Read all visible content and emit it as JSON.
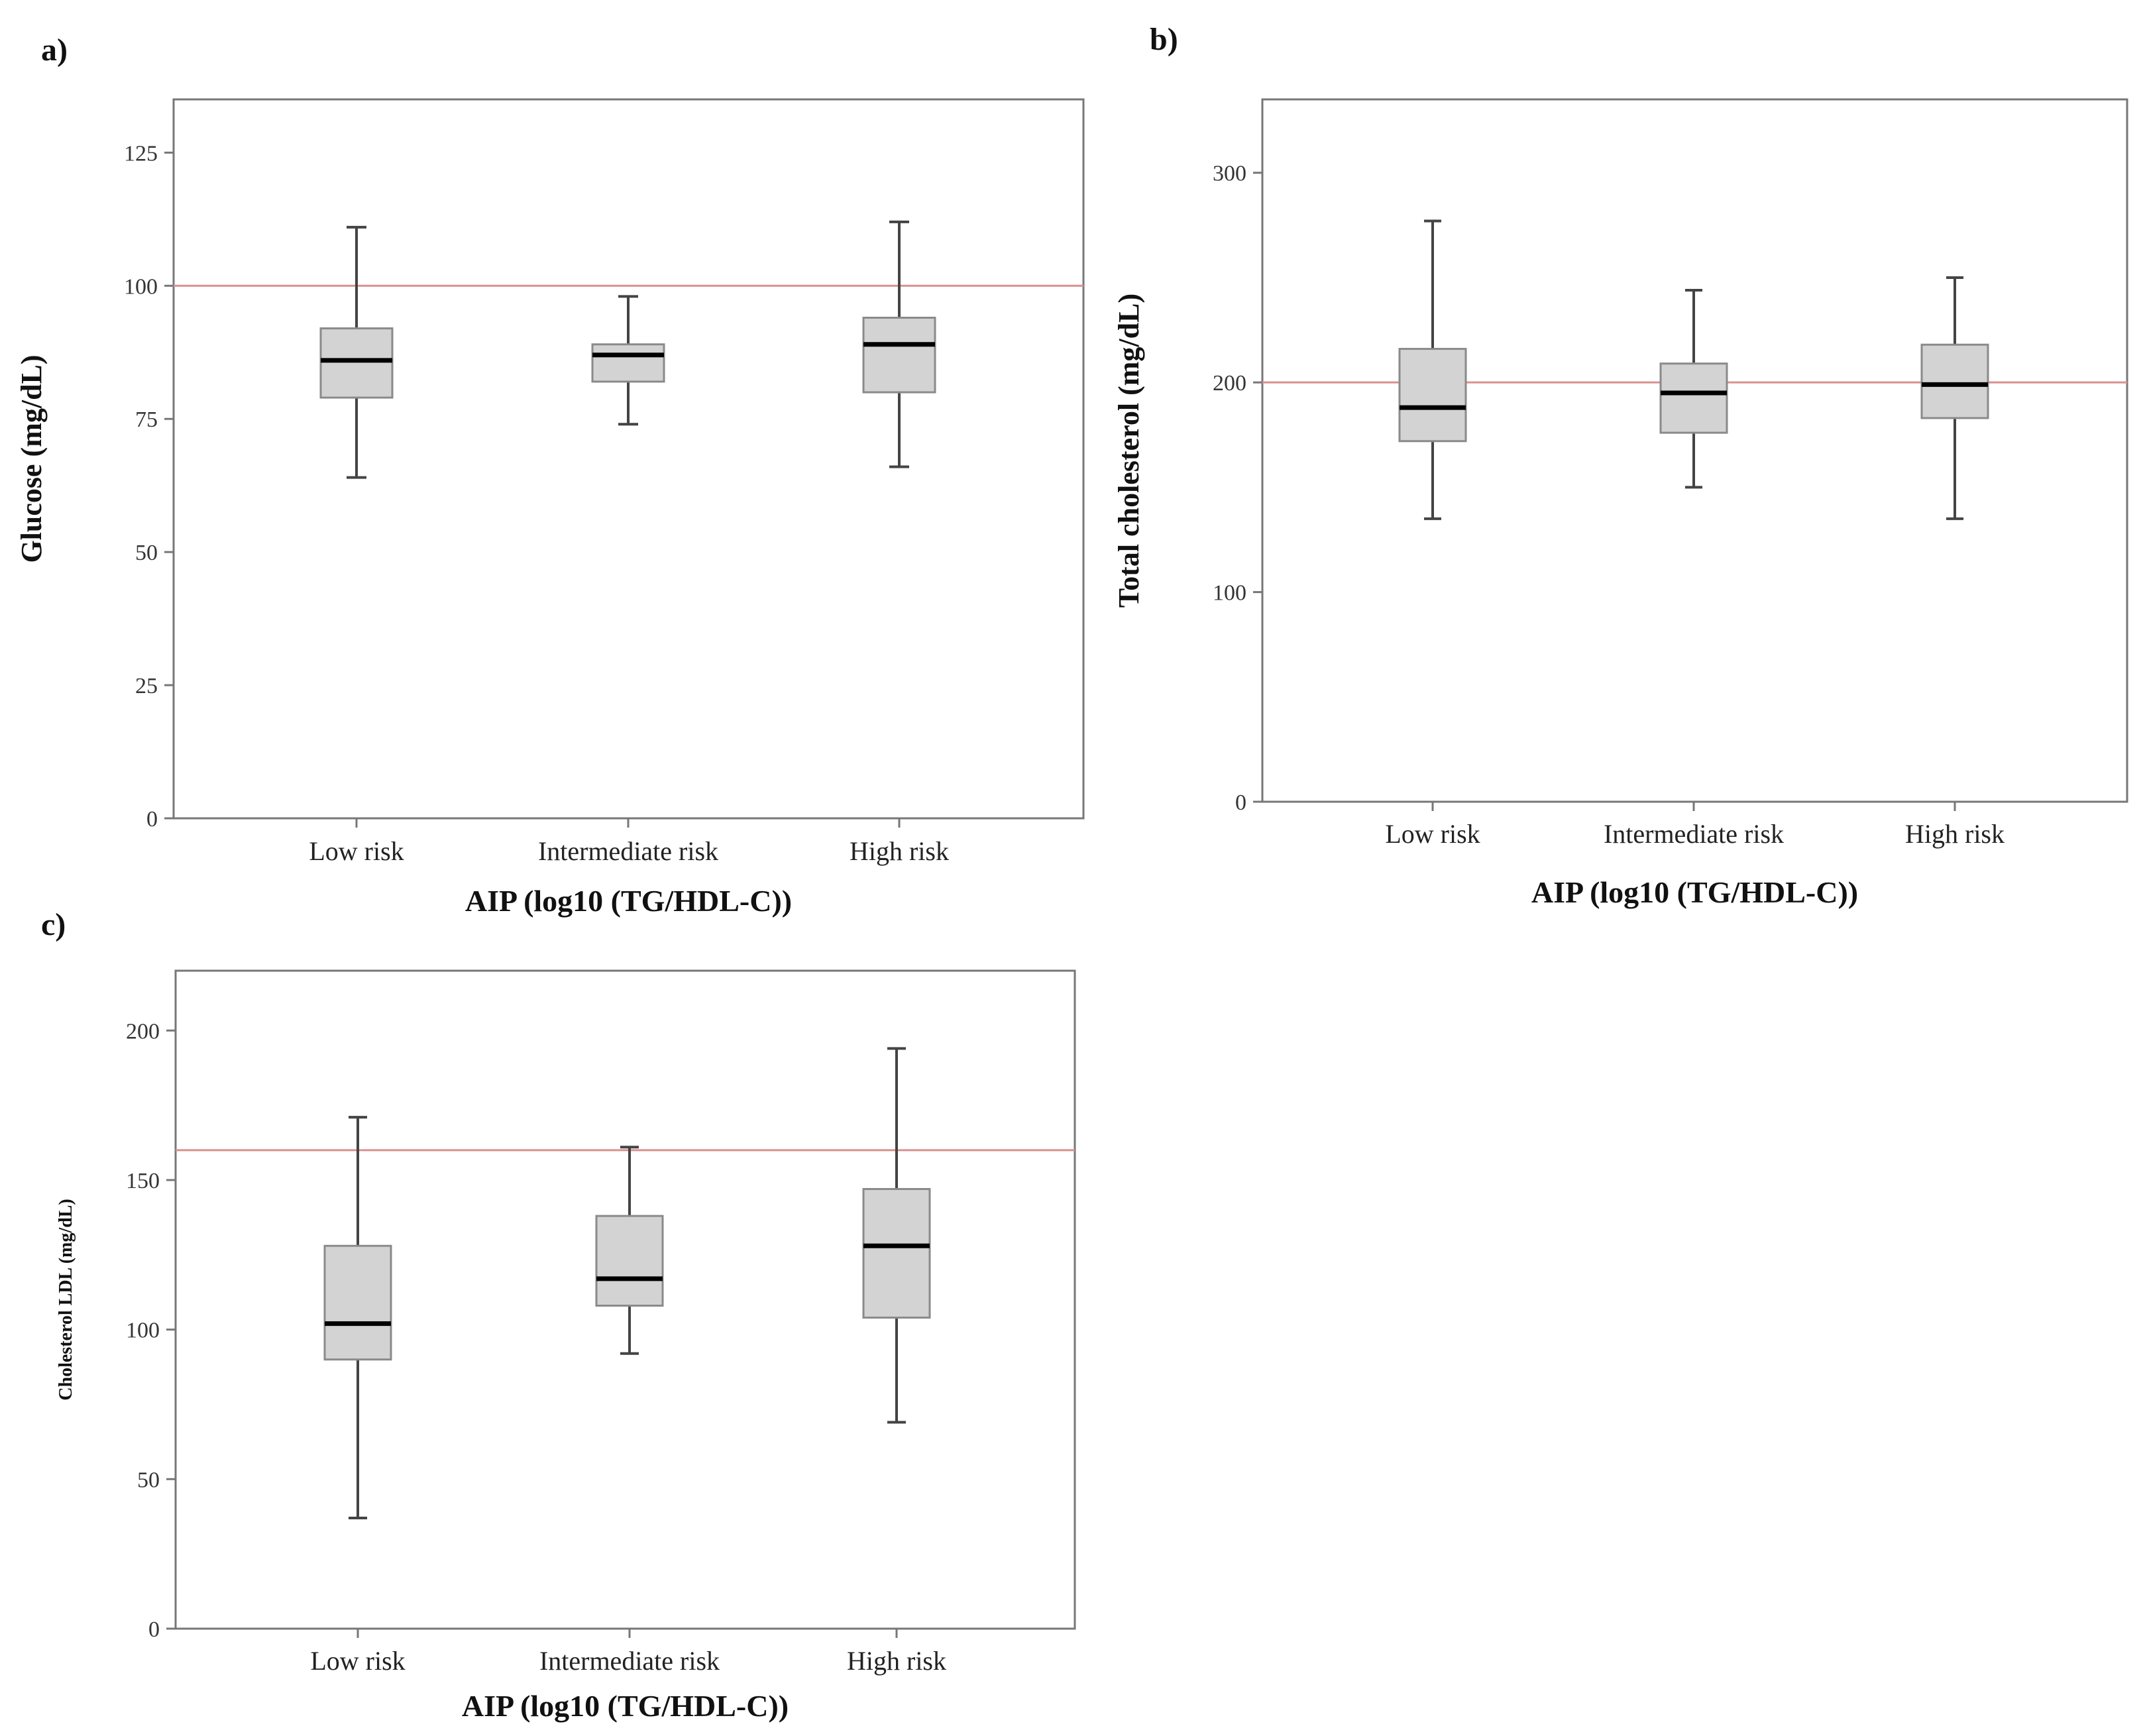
{
  "chart_data": [
    {
      "panel": "a)",
      "type": "box",
      "xlabel": "AIP (log10 (TG/HDL-C))",
      "ylabel": "Glucose (mg/dL)",
      "ylim": [
        0,
        135
      ],
      "yticks": [
        "0",
        "25",
        "50",
        "75",
        "100",
        "125"
      ],
      "reference_line": 100,
      "reference_color": "#d9908f",
      "categories": [
        "Low risk",
        "Intermediate risk",
        "High risk"
      ],
      "boxes": [
        {
          "min": 64,
          "q1": 79,
          "median": 86,
          "q3": 92,
          "max": 111
        },
        {
          "min": 74,
          "q1": 82,
          "median": 87,
          "q3": 89,
          "max": 98
        },
        {
          "min": 66,
          "q1": 80,
          "median": 89,
          "q3": 94,
          "max": 112
        }
      ]
    },
    {
      "panel": "b)",
      "type": "box",
      "xlabel": "AIP (log10 (TG/HDL-C))",
      "ylabel": "Total cholesterol (mg/dL)",
      "ylim": [
        0,
        335
      ],
      "yticks": [
        "0",
        "100",
        "200",
        "300"
      ],
      "reference_line": 200,
      "reference_color": "#d9908f",
      "categories": [
        "Low risk",
        "Intermediate risk",
        "High risk"
      ],
      "boxes": [
        {
          "min": 135,
          "q1": 172,
          "median": 188,
          "q3": 216,
          "max": 277
        },
        {
          "min": 150,
          "q1": 176,
          "median": 195,
          "q3": 209,
          "max": 244
        },
        {
          "min": 135,
          "q1": 183,
          "median": 199,
          "q3": 218,
          "max": 250
        }
      ]
    },
    {
      "panel": "c)",
      "type": "box",
      "xlabel": "AIP (log10 (TG/HDL-C))",
      "ylabel": "Cholesterol LDL (mg/dL)",
      "ylim": [
        0,
        220
      ],
      "yticks": [
        "0",
        "50",
        "100",
        "150",
        "200"
      ],
      "reference_line": 160,
      "reference_color": "#d9908f",
      "categories": [
        "Low risk",
        "Intermediate risk",
        "High risk"
      ],
      "boxes": [
        {
          "min": 37,
          "q1": 90,
          "median": 102,
          "q3": 128,
          "max": 171
        },
        {
          "min": 92,
          "q1": 108,
          "median": 117,
          "q3": 138,
          "max": 161
        },
        {
          "min": 69,
          "q1": 104,
          "median": 128,
          "q3": 147,
          "max": 194
        }
      ]
    }
  ]
}
